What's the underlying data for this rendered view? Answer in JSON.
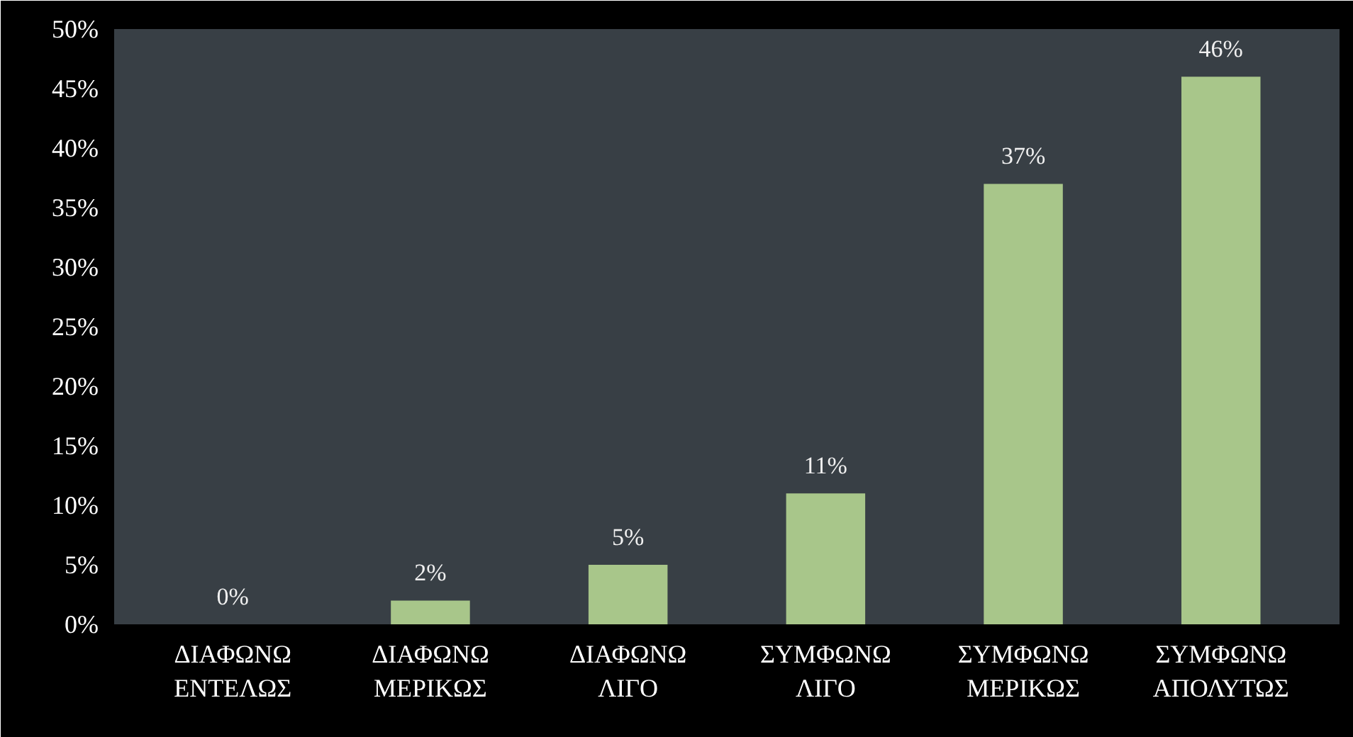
{
  "chart_data": {
    "type": "bar",
    "categories": [
      "ΔΙΑΦΩΝΩ ΕΝΤΕΛΩΣ",
      "ΔΙΑΦΩΝΩ ΜΕΡΙΚΩΣ",
      "ΔΙΑΦΩΝΩ ΛΙΓΟ",
      "ΣΥΜΦΩΝΩ ΛΙΓΟ",
      "ΣΥΜΦΩΝΩ ΜΕΡΙΚΩΣ",
      "ΣΥΜΦΩΝΩ ΑΠΟΛΥΤΩΣ"
    ],
    "values": [
      0,
      2,
      5,
      11,
      37,
      46
    ],
    "color": "#a8c68a",
    "data_labels": true,
    "value_labels": [
      "0%",
      "2%",
      "5%",
      "11%",
      "37%",
      "46%"
    ],
    "ylim": [
      0,
      50
    ],
    "yticks": [
      {
        "value": 0,
        "label": "0%"
      },
      {
        "value": 5,
        "label": "5%"
      },
      {
        "value": 10,
        "label": "10%"
      },
      {
        "value": 15,
        "label": "15%"
      },
      {
        "value": 20,
        "label": "20%"
      },
      {
        "value": 25,
        "label": "25%"
      },
      {
        "value": 30,
        "label": "30%"
      },
      {
        "value": 35,
        "label": "35%"
      },
      {
        "value": 40,
        "label": "40%"
      },
      {
        "value": 45,
        "label": "45%"
      },
      {
        "value": 50,
        "label": "50%"
      }
    ],
    "grid": false
  }
}
